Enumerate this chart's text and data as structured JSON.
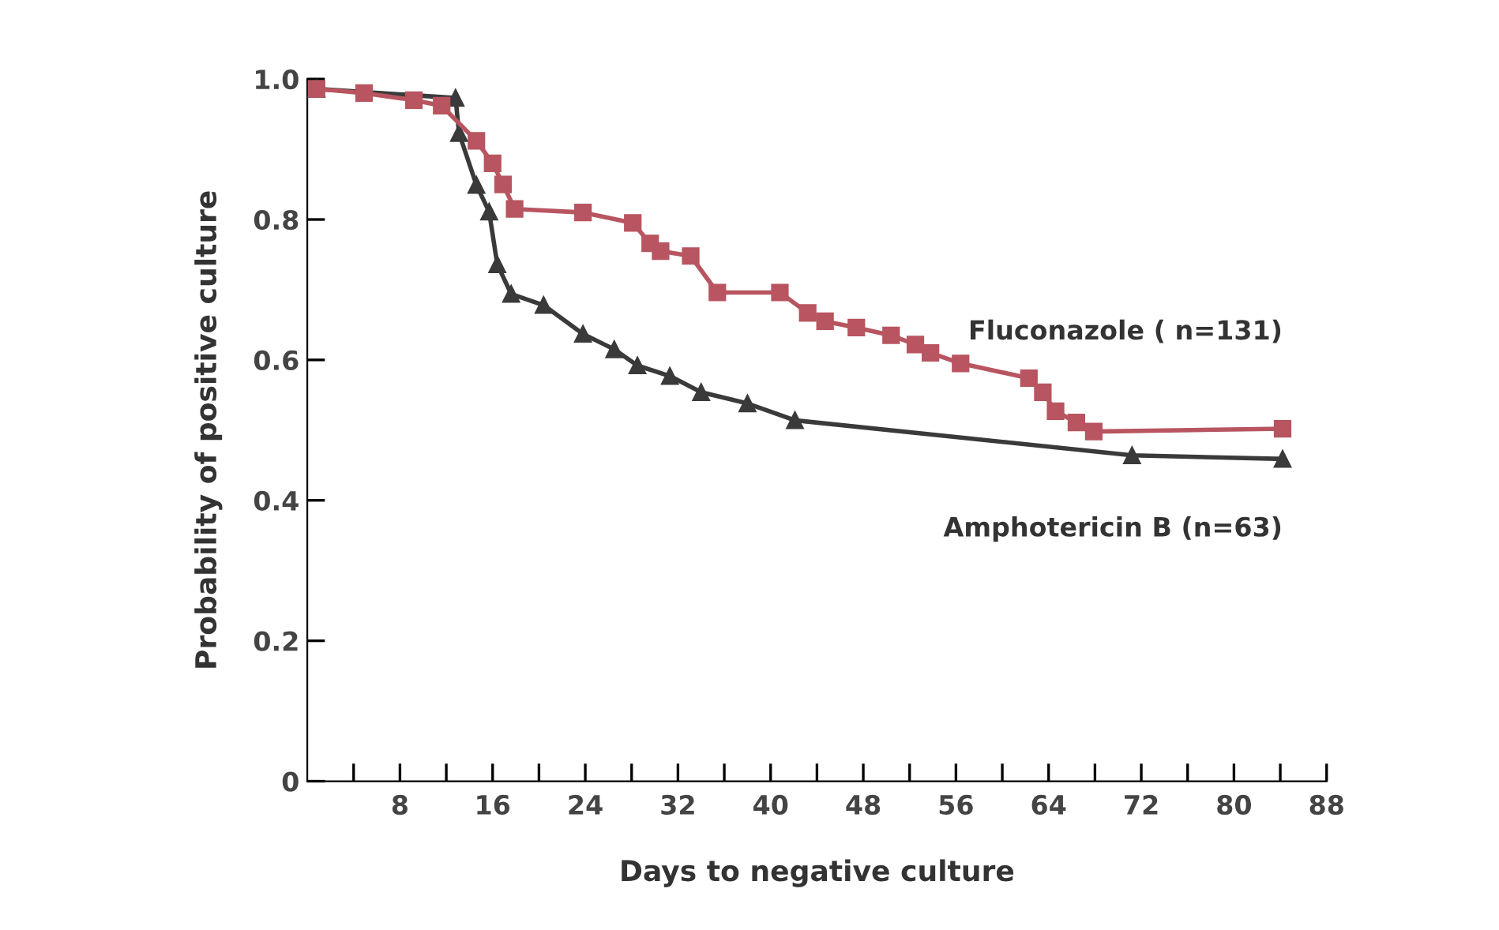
{
  "chart_data": {
    "type": "line",
    "xlabel": "Days to negative culture",
    "ylabel": "Probability of positive culture",
    "xlim": [
      0,
      88
    ],
    "ylim": [
      0,
      1.0
    ],
    "xticks": [
      {
        "value": 4,
        "label": null
      },
      8,
      {
        "value": 12,
        "label": null
      },
      16,
      {
        "value": 20,
        "label": null
      },
      24,
      {
        "value": 28,
        "label": null
      },
      32,
      {
        "value": 36,
        "label": null
      },
      40,
      {
        "value": 44,
        "label": null
      },
      48,
      {
        "value": 52,
        "label": null
      },
      56,
      {
        "value": 60,
        "label": null
      },
      64,
      {
        "value": 68,
        "label": null
      },
      72,
      {
        "value": 76,
        "label": null
      },
      80,
      {
        "value": 84,
        "label": null
      },
      88
    ],
    "yticks": [
      0,
      0.2,
      0.4,
      0.6,
      0.8,
      {
        "value": 1.0,
        "label": "1.0"
      }
    ],
    "grid": false,
    "legend": false,
    "line_style": "solid",
    "series": [
      {
        "name": "Fluconazole ( n=131)",
        "color": "#b85560",
        "marker": "square",
        "x": [
          0.8,
          4.9,
          9.2,
          11.6,
          14.6,
          16,
          16.9,
          17.9,
          23.8,
          28.1,
          29.6,
          30.5,
          33.1,
          35.4,
          40.8,
          43.2,
          44.7,
          47.4,
          50.4,
          52.5,
          53.8,
          56.4,
          62.3,
          63.5,
          64.6,
          66.4,
          67.9,
          84.2
        ],
        "values": [
          0.986,
          0.98,
          0.97,
          0.962,
          0.912,
          0.88,
          0.85,
          0.815,
          0.81,
          0.795,
          0.766,
          0.755,
          0.748,
          0.696,
          0.696,
          0.667,
          0.655,
          0.646,
          0.635,
          0.622,
          0.61,
          0.595,
          0.574,
          0.554,
          0.527,
          0.511,
          0.498,
          0.502
        ]
      },
      {
        "name": "Amphotericin B (n=63)",
        "color": "#3a3a3a",
        "marker": "triangle",
        "x": [
          0.8,
          12.8,
          13.1,
          14.6,
          15.7,
          16.4,
          17.6,
          20.4,
          23.8,
          26.5,
          28.5,
          31.3,
          34,
          38,
          42.1,
          71.2,
          84.2
        ],
        "values": [
          0.986,
          0.973,
          0.923,
          0.849,
          0.811,
          0.736,
          0.694,
          0.678,
          0.637,
          0.615,
          0.592,
          0.577,
          0.554,
          0.538,
          0.514,
          0.464,
          0.459
        ]
      }
    ]
  }
}
